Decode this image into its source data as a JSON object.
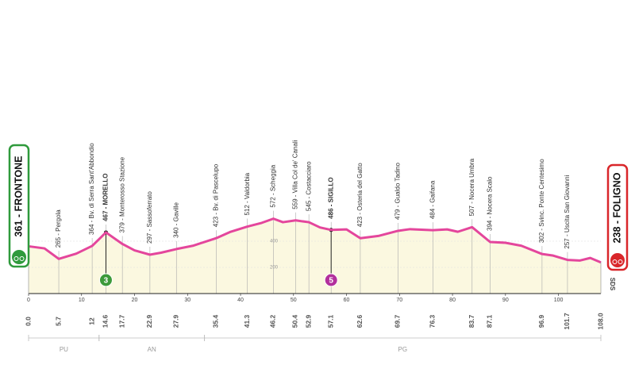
{
  "chart_data": {
    "type": "area",
    "start": {
      "label": "361 - FRONTONE",
      "km": {
        "value": 0,
        "label": "0.0"
      },
      "color": "#2f9a3c"
    },
    "finish": {
      "label": "238 - FOLIGNO",
      "km": {
        "value": 108,
        "label": "108.0"
      },
      "color": "#d9262a"
    },
    "x": [
      0,
      3,
      5.7,
      9,
      12,
      14.6,
      17.7,
      20,
      22.9,
      25,
      27.9,
      31,
      35.4,
      38,
      41.3,
      44,
      46.2,
      48,
      50.4,
      52.9,
      55,
      57.1,
      60,
      62.6,
      66,
      69.7,
      72,
      76.3,
      79,
      81,
      83.7,
      87.1,
      90,
      93,
      96.9,
      99,
      101.7,
      104,
      106,
      108
    ],
    "values": [
      361,
      345,
      265,
      305,
      364,
      467,
      379,
      330,
      297,
      312,
      340,
      365,
      423,
      470,
      512,
      540,
      572,
      545,
      559,
      545,
      505,
      486,
      490,
      423,
      440,
      479,
      492,
      484,
      490,
      472,
      507,
      394,
      388,
      365,
      302,
      290,
      257,
      252,
      272,
      238
    ],
    "color": "#e4469c",
    "fill": "#fbf8e0",
    "xlim": [
      0,
      108
    ],
    "xticks": [
      0,
      10,
      20,
      30,
      40,
      50,
      60,
      70,
      80,
      90,
      100
    ],
    "ylim": [
      0,
      600
    ],
    "yticks": [
      200,
      400
    ],
    "waypoints": [
      {
        "km": 5.7,
        "label": "265 - Pergola"
      },
      {
        "km": 12.0,
        "label": "364 - Bv. di Serra Sant'Abbondio"
      },
      {
        "km": 14.6,
        "label": "467 - MORELLO",
        "bold": true
      },
      {
        "km": 17.7,
        "label": "379 - Monterosso Stazione"
      },
      {
        "km": 22.9,
        "label": "297 - Sassoferrato"
      },
      {
        "km": 27.9,
        "label": "340 - Gaville"
      },
      {
        "km": 35.4,
        "label": "423 - Bv. di Pascelupo"
      },
      {
        "km": 41.3,
        "label": "512 - Valdorbia"
      },
      {
        "km": 46.2,
        "label": "572 - Scheggia"
      },
      {
        "km": 50.4,
        "label": "559 - Villa Col de' Canali"
      },
      {
        "km": 52.9,
        "label": "545 - Costacciaro"
      },
      {
        "km": 57.1,
        "label": "486 - SIGILLO",
        "bold": true
      },
      {
        "km": 62.6,
        "label": "423 - Osteria del Gatto"
      },
      {
        "km": 69.7,
        "label": "479 - Gualdo Tadino"
      },
      {
        "km": 76.3,
        "label": "484 - Gaifana"
      },
      {
        "km": 83.7,
        "label": "507 - Nocera Umbra"
      },
      {
        "km": 87.1,
        "label": "394 - Nocera Scalo"
      },
      {
        "km": 96.9,
        "label": "302 - Svinc. Ponte Centesimo"
      },
      {
        "km": 101.7,
        "label": "257 - Uscita San Giovanni"
      }
    ],
    "markers": [
      {
        "km": 14.6,
        "label": "3",
        "color": "#3d9a3a"
      },
      {
        "km": 57.1,
        "label": "5",
        "color": "#b3309c"
      }
    ],
    "provinces": [
      {
        "label": "PU",
        "to": 13.3
      },
      {
        "label": "AN",
        "to": 33.2
      },
      {
        "label": "PG",
        "to": 108
      }
    ],
    "footer_mark": "SDS"
  }
}
